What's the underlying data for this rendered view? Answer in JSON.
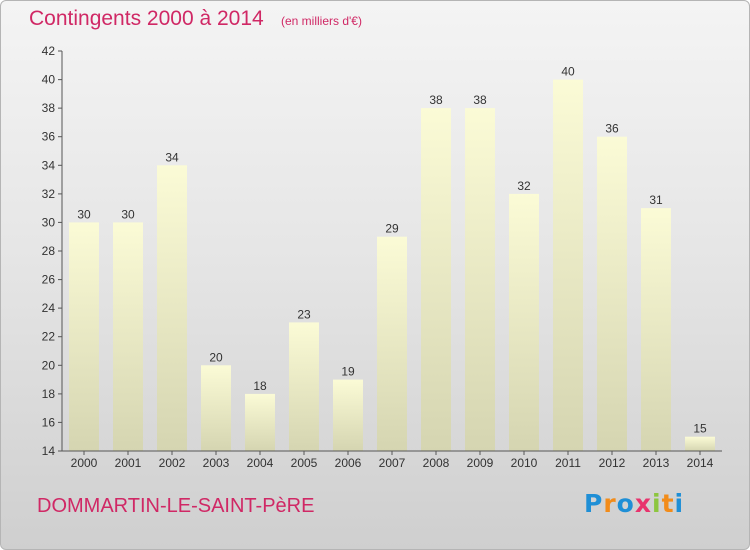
{
  "chart_data": {
    "type": "bar",
    "title": "Contingents 2000 à 2014",
    "subtitle": "(en milliers d'€)",
    "categories": [
      "2000",
      "2001",
      "2002",
      "2003",
      "2004",
      "2005",
      "2006",
      "2007",
      "2008",
      "2009",
      "2010",
      "2011",
      "2012",
      "2013",
      "2014"
    ],
    "values": [
      30,
      30,
      34,
      20,
      18,
      23,
      19,
      29,
      38,
      38,
      32,
      40,
      36,
      31,
      15
    ],
    "xlabel": "",
    "ylabel": "",
    "ylim": [
      14,
      42
    ],
    "yticks": [
      14,
      16,
      18,
      20,
      22,
      24,
      26,
      28,
      30,
      32,
      34,
      36,
      38,
      40,
      42
    ],
    "grid": false,
    "legend": "none",
    "colors": {
      "bar_top": "#fbfbd6",
      "bar_bottom": "#d5d5b1",
      "axis": "#555555",
      "text": "#333333",
      "title": "#d02865"
    }
  },
  "footer": {
    "commune": "DOMMARTIN-LE-SAINT-PèRE"
  },
  "logo": {
    "letters": [
      "P",
      "r",
      "o",
      "x",
      "i",
      "t",
      "i"
    ],
    "colors": [
      "#1f8fd6",
      "#f28c1a",
      "#1f8fd6",
      "#e8336d",
      "#8dc63f",
      "#f28c1a",
      "#1f8fd6"
    ]
  }
}
